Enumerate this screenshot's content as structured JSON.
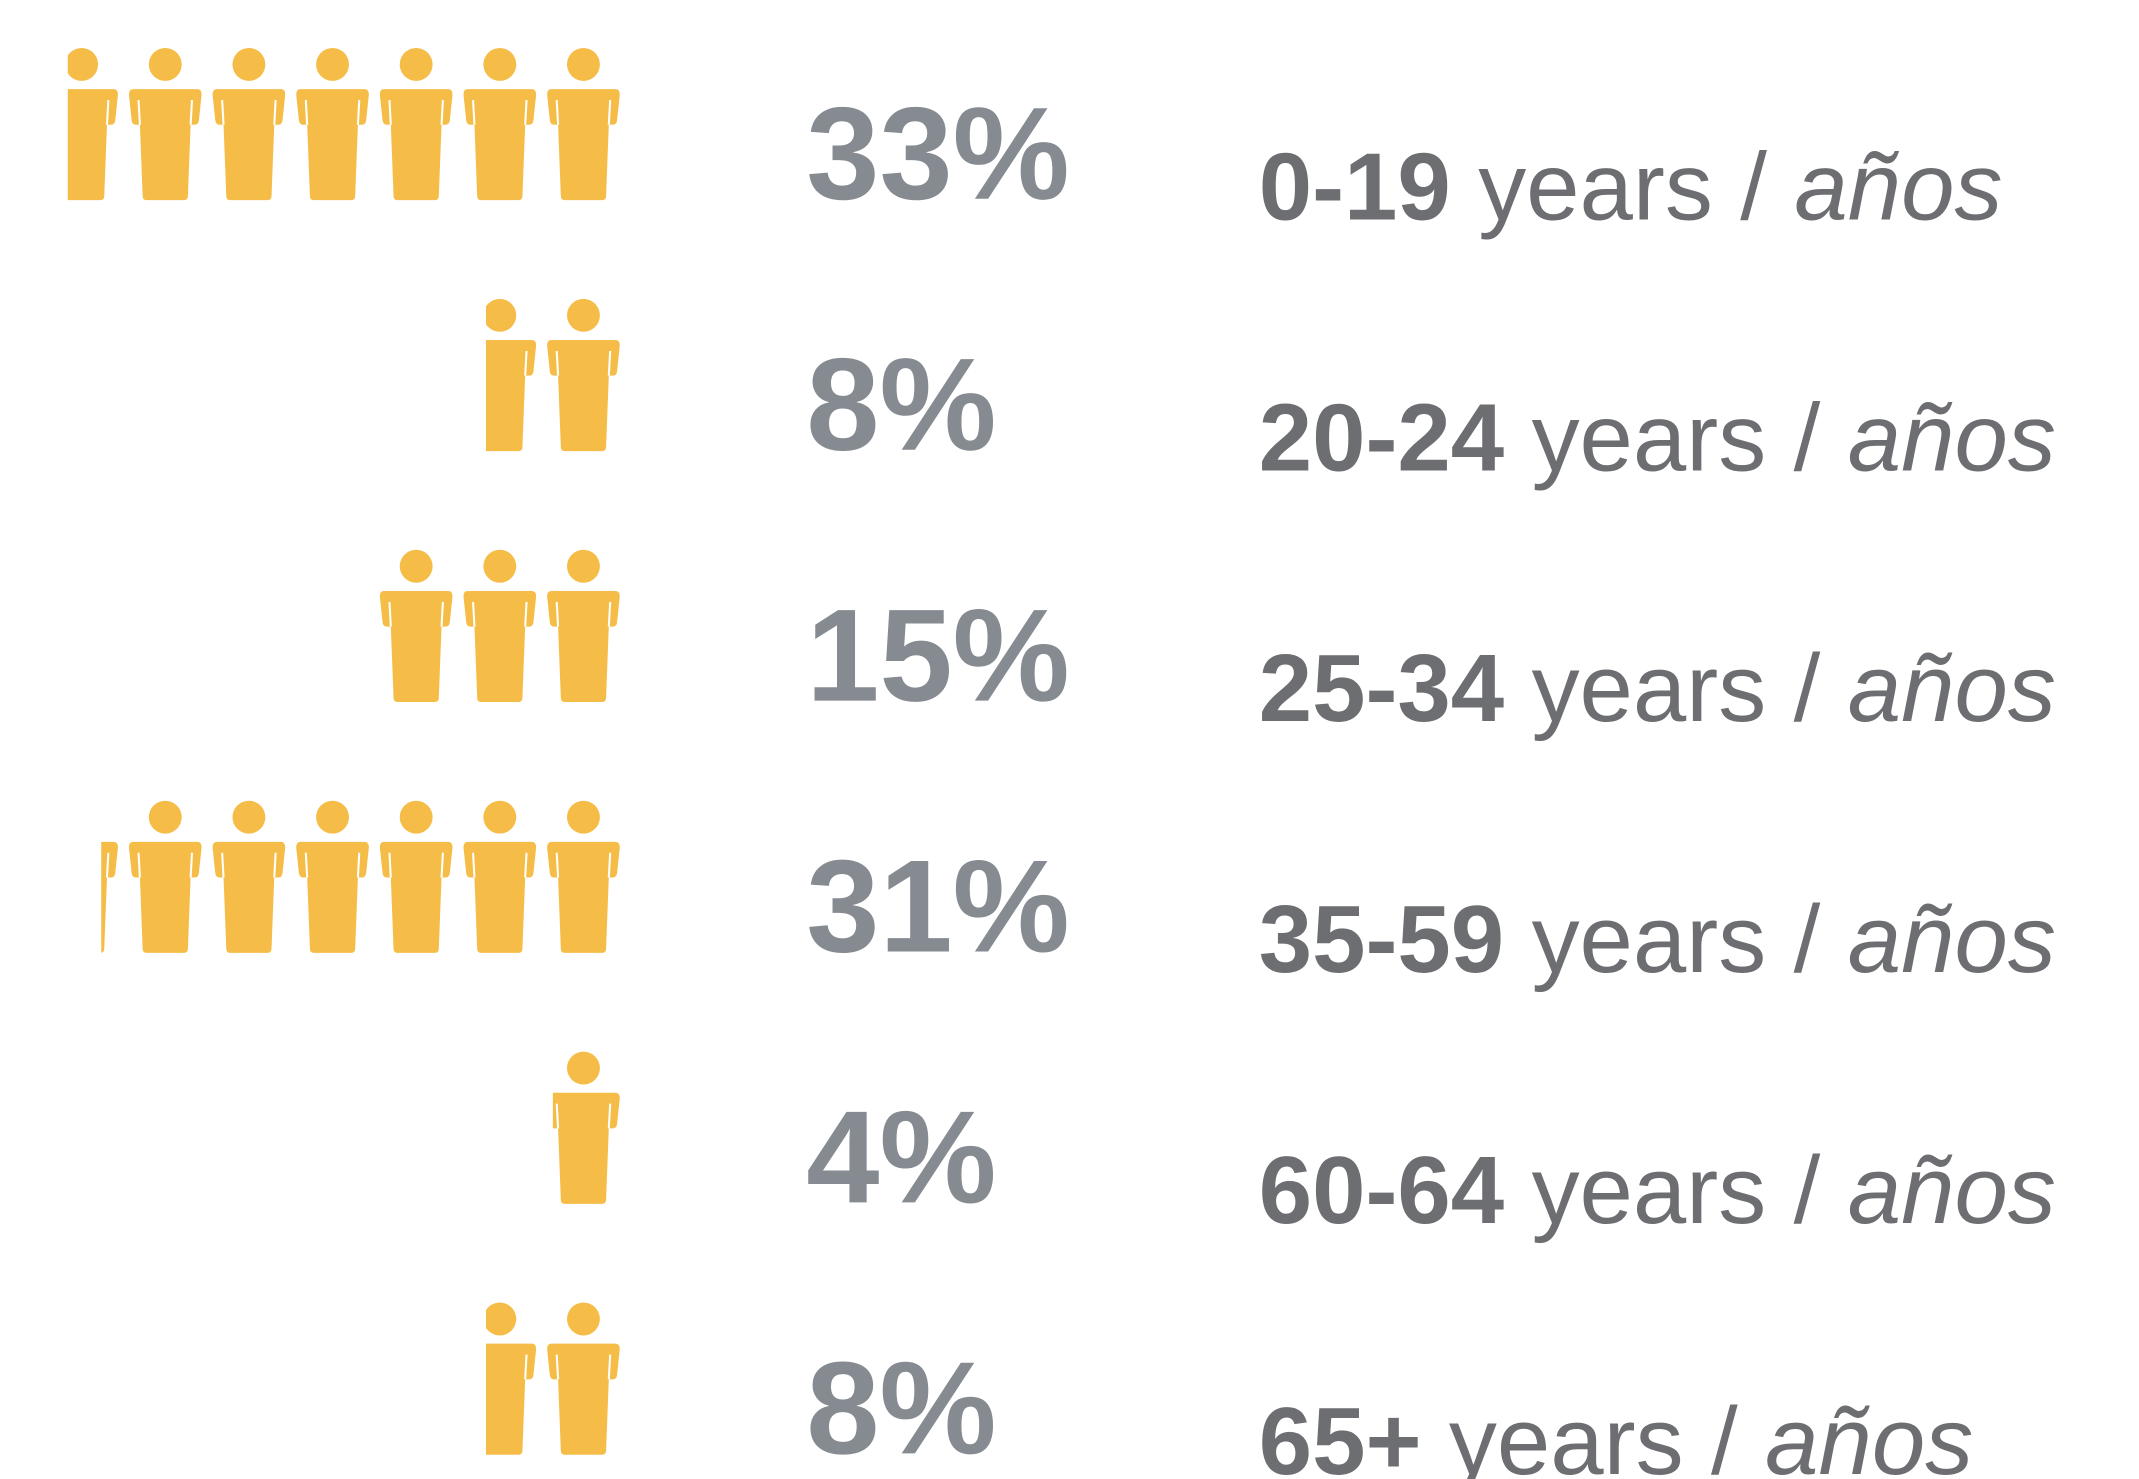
{
  "chart_data": {
    "type": "pictograph",
    "categories": [
      "0-19",
      "20-24",
      "25-34",
      "35-59",
      "60-64",
      "65+"
    ],
    "values": [
      33,
      8,
      15,
      31,
      4,
      8
    ],
    "value_labels": [
      "33%",
      "8%",
      "15%",
      "31%",
      "4%",
      "8%"
    ],
    "suffix_en": "years",
    "separator": "/",
    "suffix_es": "años",
    "color": "#f5bd47"
  }
}
